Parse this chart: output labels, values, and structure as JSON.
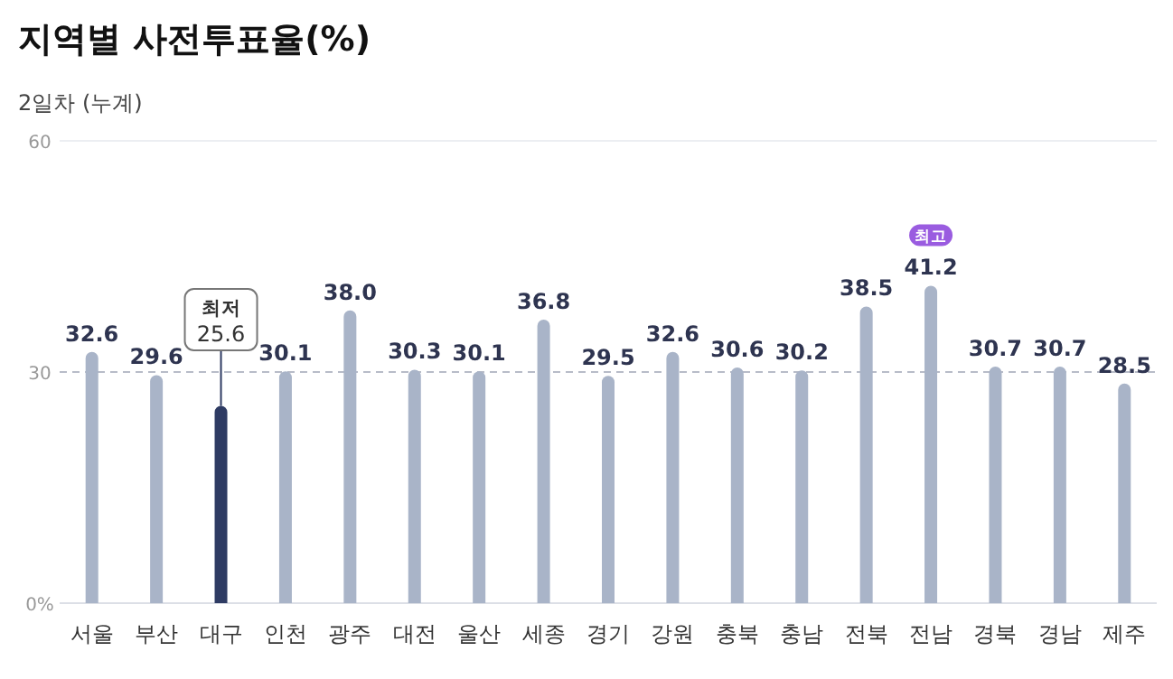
{
  "chart_data": {
    "type": "bar",
    "title": "지역별 사전투표율(%)",
    "subtitle": "2일차 (누계)",
    "categories": [
      "서울",
      "부산",
      "대구",
      "인천",
      "광주",
      "대전",
      "울산",
      "세종",
      "경기",
      "강원",
      "충북",
      "충남",
      "전북",
      "전남",
      "경북",
      "경남",
      "제주"
    ],
    "values": [
      32.6,
      29.6,
      25.6,
      30.1,
      38.0,
      30.3,
      30.1,
      36.8,
      29.5,
      32.6,
      30.6,
      30.2,
      38.5,
      41.2,
      30.7,
      30.7,
      28.5
    ],
    "colors": [
      "#a9b4c8",
      "#a9b4c8",
      "#2e3b63",
      "#a9b4c8",
      "#a9b4c8",
      "#a9b4c8",
      "#a9b4c8",
      "#a9b4c8",
      "#a9b4c8",
      "#a9b4c8",
      "#a9b4c8",
      "#a9b4c8",
      "#a9b4c8",
      "#a9b4c8",
      "#a9b4c8",
      "#a9b4c8",
      "#a9b4c8"
    ],
    "value_labels": [
      "32.6",
      "29.6",
      "25.6",
      "30.1",
      "38.0",
      "30.3",
      "30.1",
      "36.8",
      "29.5",
      "32.6",
      "30.6",
      "30.2",
      "38.5",
      "41.2",
      "30.7",
      "30.7",
      "28.5"
    ],
    "ylim": [
      0,
      60
    ],
    "yticks": [
      {
        "value": 0,
        "label": "0%"
      },
      30,
      60
    ],
    "ref_lines": [
      {
        "axis": "y",
        "value": 30,
        "color": "#b8bcc8",
        "line_style": "dashed"
      }
    ],
    "annotations": [
      "최저",
      {
        "text": "최고",
        "x": "전남",
        "y": 41.2
      }
    ]
  }
}
